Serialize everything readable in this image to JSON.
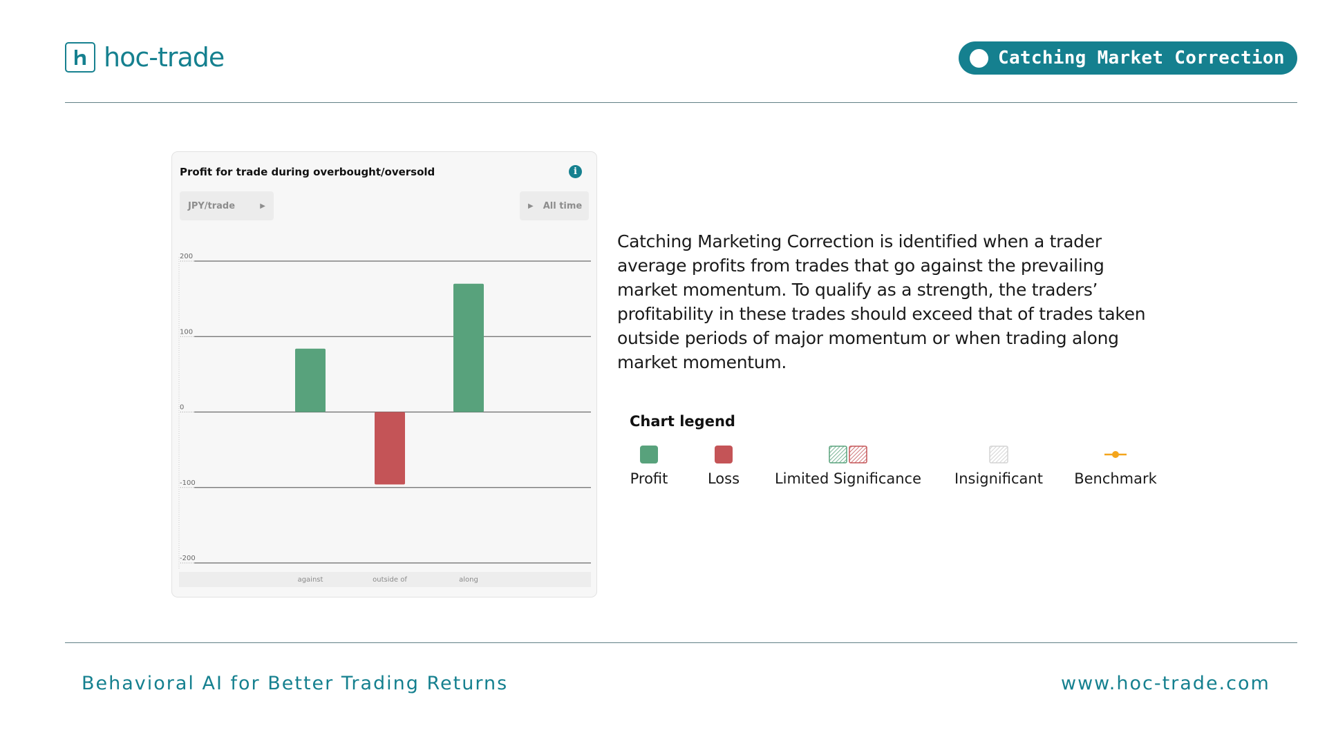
{
  "brand": {
    "name": "hoc-trade",
    "color": "#15808f"
  },
  "header": {
    "badge_label": "Catching Market Correction"
  },
  "chart_card": {
    "title": "Profit for trade during overbought/oversold",
    "info_icon": "info-icon",
    "unit_selector": "JPY/trade",
    "period_selector": "All time"
  },
  "chart_data": {
    "type": "bar",
    "title": "Profit for trade during overbought/oversold",
    "categories": [
      "against",
      "outside of",
      "along"
    ],
    "values": [
      84,
      -96,
      170
    ],
    "ylim": [
      -200,
      200
    ],
    "yticks": [
      200,
      100,
      0,
      -100,
      -200
    ],
    "grid": true,
    "colors": {
      "profit": "#58a27c",
      "loss": "#c45457"
    }
  },
  "description": "Catching Marketing Correction is identified when a trader average profits from trades that go against the prevailing market momentum. To qualify as a strength, the traders’ profitability in these trades should exceed that of trades taken outside periods of major momentum or when trading along market momentum.",
  "legend": {
    "title": "Chart legend",
    "items": [
      {
        "label": "Profit",
        "swatch": "solid-green"
      },
      {
        "label": "Loss",
        "swatch": "solid-red"
      },
      {
        "label": "Limited Significance",
        "swatch": "hatched-green-red"
      },
      {
        "label": "Insignificant",
        "swatch": "hatched-gray"
      },
      {
        "label": "Benchmark",
        "swatch": "orange-line-dot"
      }
    ]
  },
  "footer": {
    "tagline": "Behavioral AI for Better Trading Returns",
    "website": "www.hoc-trade.com"
  }
}
